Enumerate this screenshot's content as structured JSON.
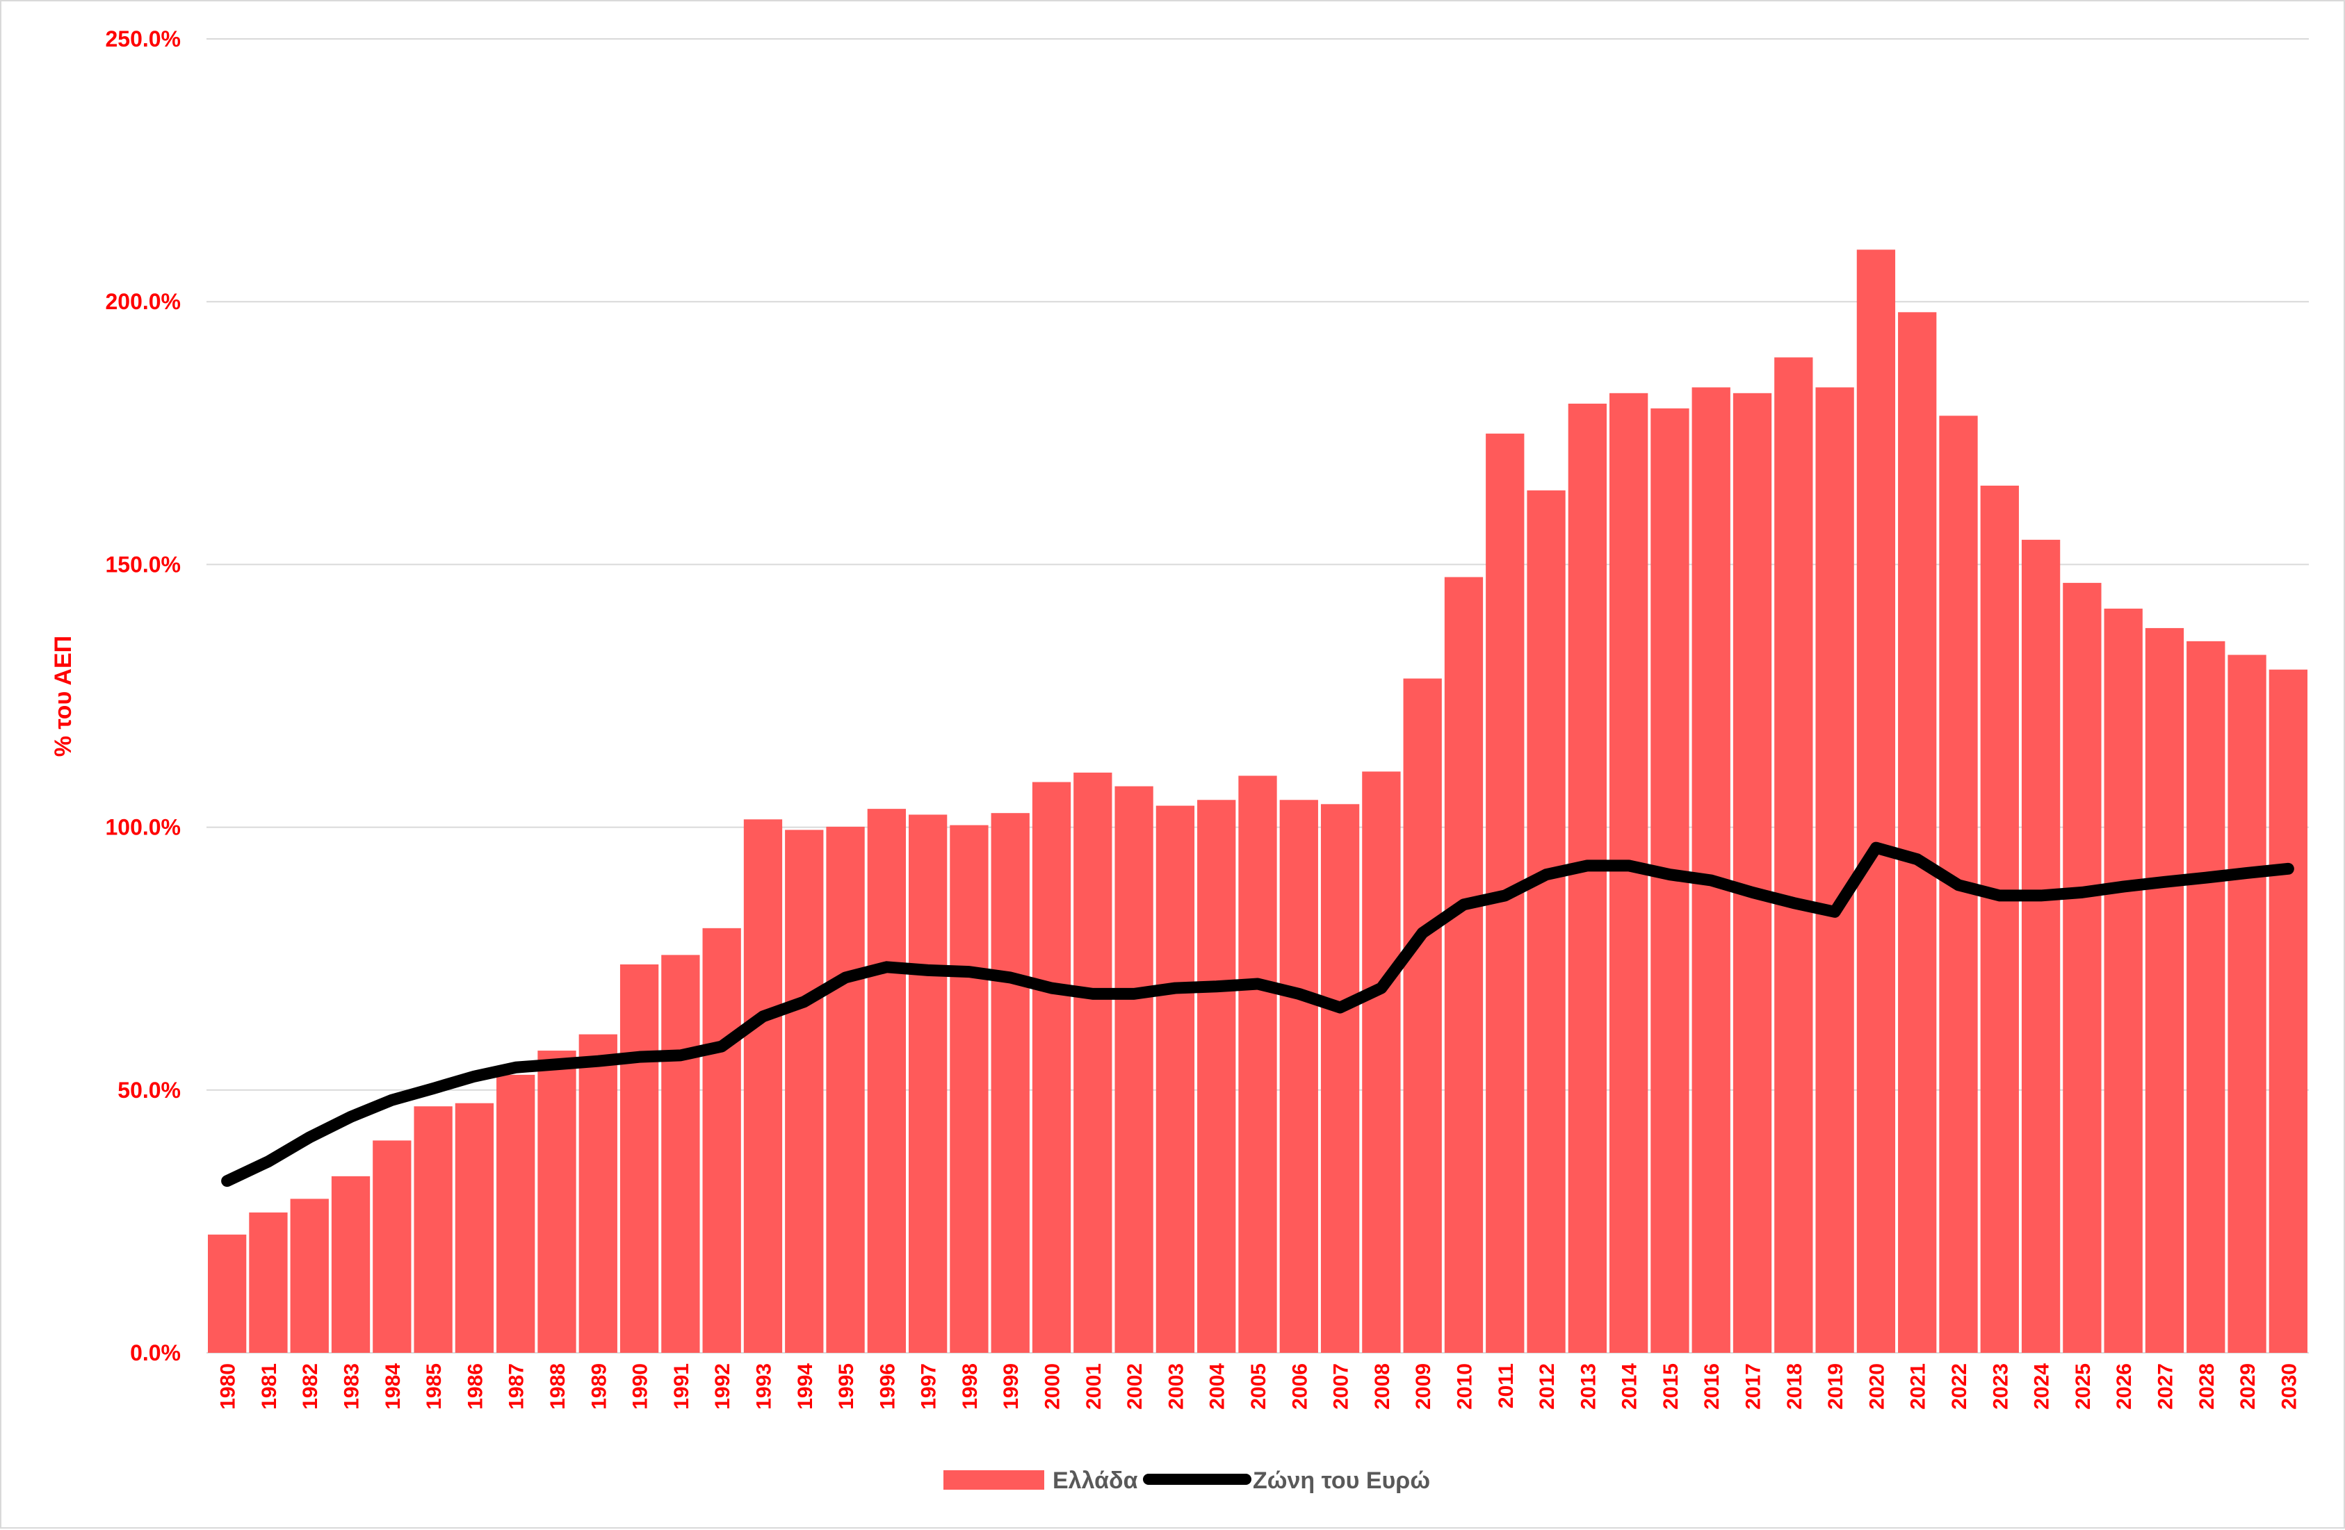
{
  "chart_data": {
    "type": "bar+line",
    "title": "",
    "xlabel": "",
    "ylabel": "% του ΑΕΠ",
    "ylim": [
      0,
      250
    ],
    "yticks": [
      "0.0%",
      "50.0%",
      "100.0%",
      "150.0%",
      "200.0%",
      "250.0%"
    ],
    "ytick_values": [
      0,
      50,
      100,
      150,
      200,
      250
    ],
    "grid": true,
    "legend_position": "bottom",
    "categories": [
      "1980",
      "1981",
      "1982",
      "1983",
      "1984",
      "1985",
      "1986",
      "1987",
      "1988",
      "1989",
      "1990",
      "1991",
      "1992",
      "1993",
      "1994",
      "1995",
      "1996",
      "1997",
      "1998",
      "1999",
      "2000",
      "2001",
      "2002",
      "2003",
      "2004",
      "2005",
      "2006",
      "2007",
      "2008",
      "2009",
      "2010",
      "2011",
      "2012",
      "2013",
      "2014",
      "2015",
      "2016",
      "2017",
      "2018",
      "2019",
      "2020",
      "2021",
      "2022",
      "2023",
      "2024",
      "2025",
      "2026",
      "2027",
      "2028",
      "2029",
      "2030"
    ],
    "series": [
      {
        "name": "Ελλάδα",
        "kind": "bar",
        "color": "#FF5A5A",
        "values": [
          22.5,
          26.7,
          29.3,
          33.6,
          40.4,
          46.9,
          47.5,
          52.9,
          57.5,
          60.6,
          73.9,
          75.7,
          80.8,
          101.5,
          99.5,
          100.1,
          103.5,
          102.4,
          100.4,
          102.7,
          108.6,
          110.4,
          107.8,
          104.1,
          105.2,
          109.8,
          105.2,
          104.4,
          110.6,
          128.3,
          147.6,
          174.9,
          164.1,
          180.6,
          182.6,
          179.7,
          183.7,
          182.6,
          189.4,
          183.7,
          209.9,
          198.0,
          178.3,
          165.0,
          154.7,
          146.5,
          141.6,
          137.9,
          135.4,
          132.8,
          130.0
        ]
      },
      {
        "name": "Ζώνη του Ευρώ",
        "kind": "line",
        "color": "#000000",
        "values": [
          32.7,
          36.4,
          41.0,
          44.9,
          48.1,
          50.3,
          52.6,
          54.3,
          54.9,
          55.5,
          56.3,
          56.6,
          58.3,
          64.0,
          66.8,
          71.4,
          73.4,
          72.8,
          72.5,
          71.4,
          69.4,
          68.3,
          68.3,
          69.4,
          69.7,
          70.2,
          68.3,
          65.7,
          69.4,
          79.9,
          85.3,
          87.0,
          91.0,
          92.7,
          92.7,
          91.0,
          89.9,
          87.6,
          85.6,
          83.9,
          96.1,
          93.9,
          89.0,
          87.0,
          87.0,
          87.6,
          88.7,
          89.6,
          90.4,
          91.3,
          92.1
        ]
      }
    ],
    "axis_text_color": "#FF0000",
    "legend_text_color": "#595959"
  }
}
